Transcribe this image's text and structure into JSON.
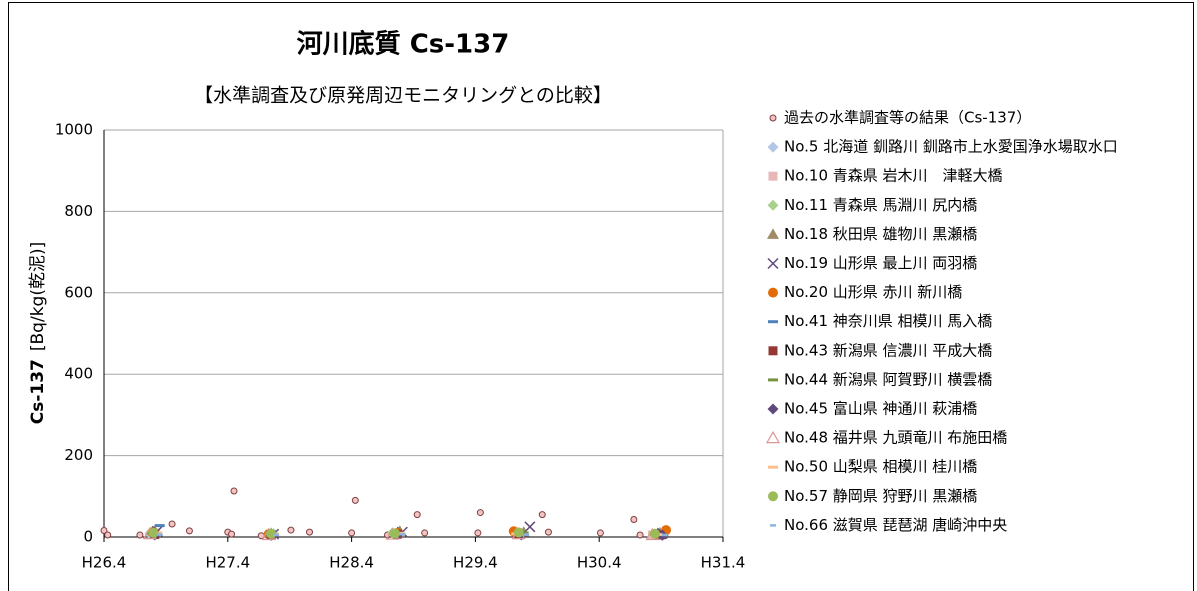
{
  "chart_data": {
    "type": "scatter",
    "title": "河川底質 Cs-137",
    "subtitle": "【水準調査及び原発周辺モニタリングとの比較】",
    "ylabel": "Cs-137",
    "ylabel_unit": "[Bq/kg(乾泥)]",
    "xlim": [
      26.25,
      31.25
    ],
    "xticks": [
      {
        "value": 26.25,
        "label": "H26.4"
      },
      {
        "value": 27.25,
        "label": "H27.4"
      },
      {
        "value": 28.25,
        "label": "H28.4"
      },
      {
        "value": 29.25,
        "label": "H29.4"
      },
      {
        "value": 30.25,
        "label": "H30.4"
      },
      {
        "value": 31.25,
        "label": "H31.4"
      }
    ],
    "ylim": [
      0,
      1000
    ],
    "yticks": [
      0,
      200,
      400,
      600,
      800,
      1000
    ],
    "grid": true,
    "series": [
      {
        "name": "過去の水準調査等の結果（Cs-137）",
        "color": "#f2c4c4",
        "marker": "circle-outline",
        "x": [
          26.25,
          26.28,
          26.54,
          26.8,
          26.94,
          27.25,
          27.28,
          27.3,
          27.52,
          27.76,
          27.91,
          28.25,
          28.28,
          28.54,
          28.78,
          28.84,
          29.27,
          29.29,
          29.57,
          29.79,
          29.84,
          30.26,
          30.53,
          30.58,
          30.78
        ],
        "values": [
          16,
          5,
          5,
          32,
          15,
          12,
          7,
          113,
          3,
          17,
          12,
          10,
          90,
          5,
          55,
          10,
          10,
          60,
          5,
          55,
          12,
          10,
          43,
          5,
          3
        ]
      },
      {
        "name": "No.5 北海道  釧路川  釧路市上水愛国浄水場取水口",
        "color": "#b4c7e7",
        "marker": "diamond",
        "x": [
          26.62,
          27.58,
          28.6,
          29.58,
          30.7
        ],
        "values": [
          8,
          5,
          6,
          9,
          6
        ]
      },
      {
        "name": "No.10 青森県 岩木川　津軽大橋",
        "color": "#e6b9b8",
        "marker": "square",
        "x": [
          26.65,
          27.6,
          28.62,
          29.6,
          30.68
        ],
        "values": [
          10,
          6,
          8,
          7,
          5
        ]
      },
      {
        "name": "No.11 青森県 馬淵川 尻内橋",
        "color": "#a9d18e",
        "marker": "diamond",
        "x": [
          26.63,
          27.62,
          28.58,
          29.62,
          30.72
        ],
        "values": [
          12,
          8,
          10,
          9,
          8
        ]
      },
      {
        "name": "No.18 秋田県 雄物川 黒瀬橋",
        "color": "#a08c64",
        "marker": "triangle",
        "x": [
          26.66,
          27.6,
          28.64,
          29.64,
          30.74
        ],
        "values": [
          15,
          9,
          14,
          12,
          10
        ]
      },
      {
        "name": "No.19 山形県 最上川 両羽橋",
        "color": "#604a7b",
        "marker": "x",
        "x": [
          26.68,
          27.62,
          28.66,
          29.69,
          30.76
        ],
        "values": [
          14,
          7,
          12,
          25,
          9
        ]
      },
      {
        "name": "No.20 山形県 赤川 新川橋",
        "color": "#e36c09",
        "marker": "circle",
        "x": [
          26.64,
          27.58,
          28.62,
          29.56,
          30.79
        ],
        "values": [
          11,
          7,
          10,
          14,
          17
        ]
      },
      {
        "name": "No.41 神奈川県 相模川 馬入橋",
        "color": "#4f81bd",
        "marker": "dash",
        "x": [
          26.7,
          27.6,
          28.6,
          29.62,
          30.72
        ],
        "values": [
          28,
          10,
          12,
          9,
          6
        ]
      },
      {
        "name": "No.43 新潟県 信濃川 平成大橋",
        "color": "#953735",
        "marker": "square",
        "x": [
          26.66,
          27.6,
          28.62,
          29.6,
          30.74
        ],
        "values": [
          6,
          5,
          7,
          6,
          5
        ]
      },
      {
        "name": "No.44 新潟県 阿賀野川 横雲橋",
        "color": "#77933c",
        "marker": "dash",
        "x": [
          26.64,
          27.62,
          28.6,
          29.64,
          30.7
        ],
        "values": [
          9,
          6,
          8,
          10,
          7
        ]
      },
      {
        "name": "No.45 富山県 神通川 萩浦橋",
        "color": "#604a7b",
        "marker": "diamond",
        "x": [
          26.66,
          27.6,
          28.62,
          29.62,
          30.76
        ],
        "values": [
          5,
          4,
          6,
          5,
          4
        ]
      },
      {
        "name": "No.48 福井県 九頭竜川 布施田橋",
        "color": "#d99694",
        "marker": "triangle-outline",
        "x": [
          26.62,
          27.58,
          28.58,
          29.6,
          30.68
        ],
        "values": [
          7,
          5,
          6,
          7,
          5
        ]
      },
      {
        "name": "No.50 山梨県 相模川 桂川橋",
        "color": "#fabf8f",
        "marker": "dash",
        "x": [
          26.68,
          27.62,
          28.64,
          29.58,
          30.72
        ],
        "values": [
          10,
          7,
          9,
          8,
          6
        ]
      },
      {
        "name": "No.57 静岡県 狩野川 黒瀬橋",
        "color": "#9bbb59",
        "marker": "circle",
        "x": [
          26.65,
          27.6,
          28.6,
          29.6,
          30.7
        ],
        "values": [
          10,
          8,
          9,
          11,
          8
        ]
      },
      {
        "name": "No.66 滋賀県 琵琶湖 唐崎沖中央",
        "color": "#8db3e2",
        "marker": "dash-short",
        "x": [
          26.7,
          27.64,
          28.66,
          29.66,
          30.78
        ],
        "values": [
          6,
          5,
          7,
          6,
          5
        ]
      }
    ]
  }
}
